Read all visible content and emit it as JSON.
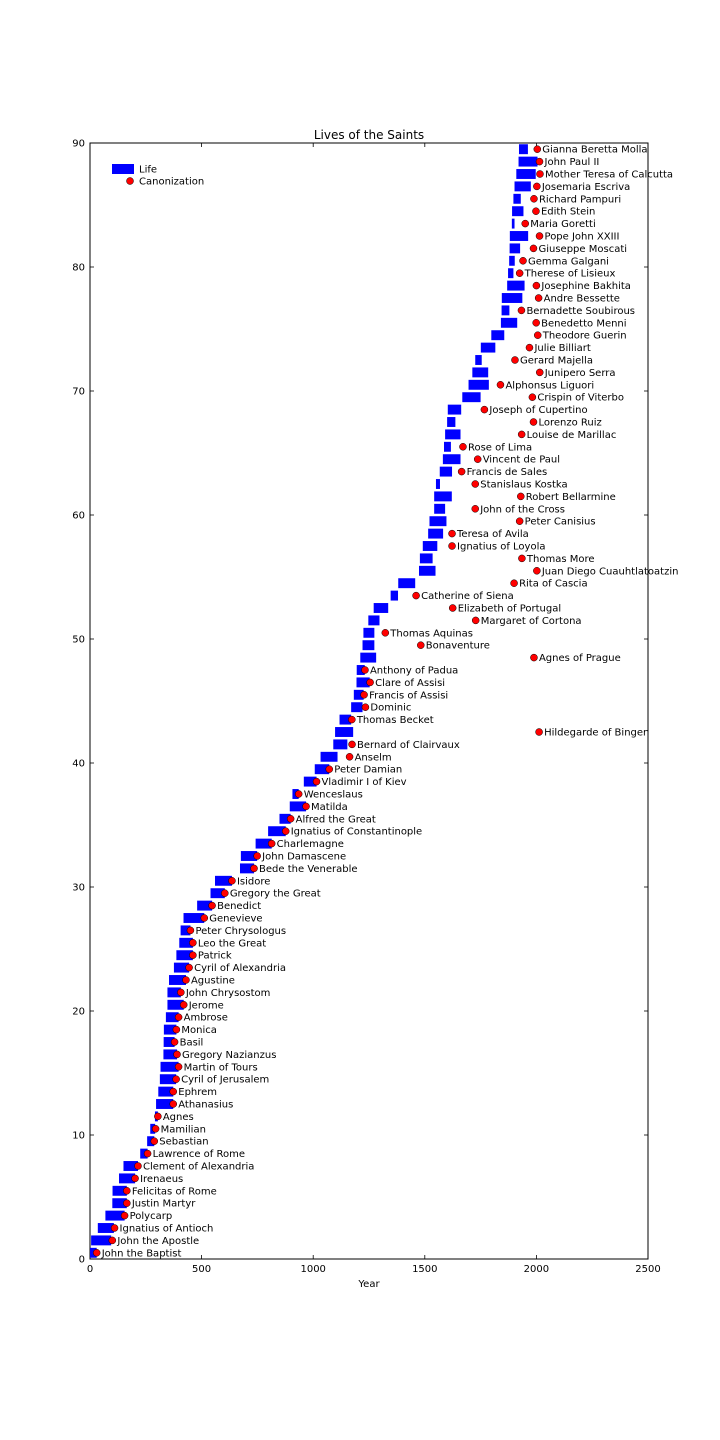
{
  "chart_data": {
    "type": "bar",
    "orientation": "horizontal-floating",
    "title": "Lives of the Saints",
    "xlabel": "Year",
    "ylabel": "",
    "xlim": [
      0,
      2500
    ],
    "ylim": [
      0,
      90
    ],
    "xticks": [
      0,
      500,
      1000,
      1500,
      2000,
      2500
    ],
    "yticks": [
      0,
      10,
      20,
      30,
      40,
      50,
      60,
      70,
      80,
      90
    ],
    "grid": false,
    "legend": {
      "position": "top-left",
      "entries": [
        "Life",
        "Canonization"
      ]
    },
    "colors": {
      "life": "#0000ff",
      "canonization": "#ff0000"
    },
    "series": [
      {
        "name": "Life",
        "kind": "bar"
      },
      {
        "name": "Canonization",
        "kind": "point"
      }
    ],
    "saints": [
      {
        "name": "John the Baptist",
        "start": 0,
        "end": 30,
        "canonization": 30
      },
      {
        "name": "John the Apostle",
        "start": 5,
        "end": 95,
        "canonization": 100
      },
      {
        "name": "Ignatius of Antioch",
        "start": 35,
        "end": 107,
        "canonization": 110
      },
      {
        "name": "Polycarp",
        "start": 69,
        "end": 155,
        "canonization": 155
      },
      {
        "name": "Justin Martyr",
        "start": 100,
        "end": 165,
        "canonization": 165
      },
      {
        "name": "Felicitas of Rome",
        "start": 101,
        "end": 165,
        "canonization": 165
      },
      {
        "name": "Irenaeus",
        "start": 130,
        "end": 202,
        "canonization": 202
      },
      {
        "name": "Clement of Alexandria",
        "start": 150,
        "end": 215,
        "canonization": 215
      },
      {
        "name": "Lawrence of Rome",
        "start": 225,
        "end": 258,
        "canonization": 258
      },
      {
        "name": "Sebastian",
        "start": 256,
        "end": 288,
        "canonization": 288
      },
      {
        "name": "Mamilian",
        "start": 270,
        "end": 292,
        "canonization": 294
      },
      {
        "name": "Agnes",
        "start": 291,
        "end": 304,
        "canonization": 304
      },
      {
        "name": "Athanasius",
        "start": 296,
        "end": 373,
        "canonization": 373
      },
      {
        "name": "Ephrem",
        "start": 306,
        "end": 373,
        "canonization": 373
      },
      {
        "name": "Cyril of Jerusalem",
        "start": 313,
        "end": 386,
        "canonization": 386
      },
      {
        "name": "Martin of Tours",
        "start": 316,
        "end": 397,
        "canonization": 397
      },
      {
        "name": "Gregory Nazianzus",
        "start": 329,
        "end": 390,
        "canonization": 390
      },
      {
        "name": "Basil",
        "start": 330,
        "end": 379,
        "canonization": 379
      },
      {
        "name": "Monica",
        "start": 331,
        "end": 387,
        "canonization": 387
      },
      {
        "name": "Ambrose",
        "start": 340,
        "end": 397,
        "canonization": 397
      },
      {
        "name": "Jerome",
        "start": 347,
        "end": 420,
        "canonization": 420
      },
      {
        "name": "John Chrysostom",
        "start": 347,
        "end": 407,
        "canonization": 407
      },
      {
        "name": "Agustine",
        "start": 354,
        "end": 430,
        "canonization": 430
      },
      {
        "name": "Cyril of Alexandria",
        "start": 376,
        "end": 444,
        "canonization": 444
      },
      {
        "name": "Patrick",
        "start": 387,
        "end": 461,
        "canonization": 461
      },
      {
        "name": "Leo the Great",
        "start": 400,
        "end": 461,
        "canonization": 461
      },
      {
        "name": "Peter Chrysologus",
        "start": 406,
        "end": 450,
        "canonization": 450
      },
      {
        "name": "Genevieve",
        "start": 419,
        "end": 512,
        "canonization": 512
      },
      {
        "name": "Benedict",
        "start": 480,
        "end": 547,
        "canonization": 547
      },
      {
        "name": "Gregory the Great",
        "start": 540,
        "end": 604,
        "canonization": 604
      },
      {
        "name": "Isidore",
        "start": 560,
        "end": 636,
        "canonization": 636
      },
      {
        "name": "Bede the Venerable",
        "start": 672,
        "end": 735,
        "canonization": 735
      },
      {
        "name": "John Damascene",
        "start": 676,
        "end": 749,
        "canonization": 749
      },
      {
        "name": "Charlemagne",
        "start": 742,
        "end": 814,
        "canonization": 814
      },
      {
        "name": "Ignatius of Constantinople",
        "start": 798,
        "end": 877,
        "canonization": 877
      },
      {
        "name": "Alfred the Great",
        "start": 849,
        "end": 899,
        "canonization": 899
      },
      {
        "name": "Matilda",
        "start": 895,
        "end": 968,
        "canonization": 968
      },
      {
        "name": "Wenceslaus",
        "start": 907,
        "end": 935,
        "canonization": 935
      },
      {
        "name": "Vladimir I of Kiev",
        "start": 958,
        "end": 1015,
        "canonization": 1015
      },
      {
        "name": "Peter Damian",
        "start": 1007,
        "end": 1072,
        "canonization": 1072
      },
      {
        "name": "Anselm",
        "start": 1033,
        "end": 1109,
        "canonization": 1163
      },
      {
        "name": "Bernard of Clairvaux",
        "start": 1090,
        "end": 1153,
        "canonization": 1174
      },
      {
        "name": "Hildegarde of Bingen",
        "start": 1098,
        "end": 1179,
        "canonization": 2012
      },
      {
        "name": "Thomas Becket",
        "start": 1118,
        "end": 1170,
        "canonization": 1173
      },
      {
        "name": "Dominic",
        "start": 1170,
        "end": 1221,
        "canonization": 1234
      },
      {
        "name": "Francis of Assisi",
        "start": 1182,
        "end": 1226,
        "canonization": 1228
      },
      {
        "name": "Clare of Assisi",
        "start": 1194,
        "end": 1253,
        "canonization": 1255
      },
      {
        "name": "Anthony of Padua",
        "start": 1195,
        "end": 1231,
        "canonization": 1232
      },
      {
        "name": "Agnes of Prague",
        "start": 1211,
        "end": 1282,
        "canonization": 1989
      },
      {
        "name": "Bonaventure",
        "start": 1221,
        "end": 1274,
        "canonization": 1482
      },
      {
        "name": "Thomas Aquinas",
        "start": 1225,
        "end": 1274,
        "canonization": 1323
      },
      {
        "name": "Margaret of Cortona",
        "start": 1247,
        "end": 1297,
        "canonization": 1728
      },
      {
        "name": "Elizabeth of Portugal",
        "start": 1271,
        "end": 1336,
        "canonization": 1625
      },
      {
        "name": "Catherine of Siena",
        "start": 1347,
        "end": 1380,
        "canonization": 1461
      },
      {
        "name": "Rita of Cascia",
        "start": 1381,
        "end": 1457,
        "canonization": 1900
      },
      {
        "name": "Juan Diego Cuauhtlatoatzin",
        "start": 1474,
        "end": 1548,
        "canonization": 2002
      },
      {
        "name": "Thomas More",
        "start": 1478,
        "end": 1535,
        "canonization": 1935
      },
      {
        "name": "Ignatius of Loyola",
        "start": 1491,
        "end": 1556,
        "canonization": 1622
      },
      {
        "name": "Teresa of Avila",
        "start": 1515,
        "end": 1582,
        "canonization": 1622
      },
      {
        "name": "Peter Canisius",
        "start": 1521,
        "end": 1597,
        "canonization": 1925
      },
      {
        "name": "John of the Cross",
        "start": 1542,
        "end": 1591,
        "canonization": 1726
      },
      {
        "name": "Robert Bellarmine",
        "start": 1542,
        "end": 1621,
        "canonization": 1930
      },
      {
        "name": "Stanislaus Kostka",
        "start": 1550,
        "end": 1568,
        "canonization": 1726
      },
      {
        "name": "Francis de Sales",
        "start": 1567,
        "end": 1622,
        "canonization": 1665
      },
      {
        "name": "Vincent de Paul",
        "start": 1581,
        "end": 1660,
        "canonization": 1737
      },
      {
        "name": "Rose of Lima",
        "start": 1586,
        "end": 1617,
        "canonization": 1671
      },
      {
        "name": "Louise de Marillac",
        "start": 1591,
        "end": 1660,
        "canonization": 1934
      },
      {
        "name": "Lorenzo Ruiz",
        "start": 1600,
        "end": 1637,
        "canonization": 1987
      },
      {
        "name": "Joseph of Cupertino",
        "start": 1603,
        "end": 1663,
        "canonization": 1767
      },
      {
        "name": "Crispin of Viterbo",
        "start": 1668,
        "end": 1750,
        "canonization": 1982
      },
      {
        "name": "Alphonsus Liguori",
        "start": 1696,
        "end": 1787,
        "canonization": 1839
      },
      {
        "name": "Junipero Serra",
        "start": 1713,
        "end": 1784,
        "canonization": 2015
      },
      {
        "name": "Gerard Majella",
        "start": 1726,
        "end": 1755,
        "canonization": 1904
      },
      {
        "name": "Julie Billiart",
        "start": 1751,
        "end": 1816,
        "canonization": 1969
      },
      {
        "name": "Theodore Guerin",
        "start": 1798,
        "end": 1856,
        "canonization": 2006
      },
      {
        "name": "Benedetto Menni",
        "start": 1841,
        "end": 1914,
        "canonization": 1999
      },
      {
        "name": "Bernadette Soubirous",
        "start": 1844,
        "end": 1879,
        "canonization": 1933
      },
      {
        "name": "Andre Bessette",
        "start": 1845,
        "end": 1937,
        "canonization": 2010
      },
      {
        "name": "Josephine Bakhita",
        "start": 1869,
        "end": 1947,
        "canonization": 2000
      },
      {
        "name": "Therese of Lisieux",
        "start": 1873,
        "end": 1897,
        "canonization": 1925
      },
      {
        "name": "Gemma Galgani",
        "start": 1878,
        "end": 1903,
        "canonization": 1940
      },
      {
        "name": "Giuseppe Moscati",
        "start": 1880,
        "end": 1927,
        "canonization": 1987
      },
      {
        "name": "Pope John XXIII",
        "start": 1881,
        "end": 1963,
        "canonization": 2014
      },
      {
        "name": "Maria Goretti",
        "start": 1890,
        "end": 1902,
        "canonization": 1950
      },
      {
        "name": "Edith Stein",
        "start": 1891,
        "end": 1942,
        "canonization": 1998
      },
      {
        "name": "Richard Pampuri",
        "start": 1897,
        "end": 1930,
        "canonization": 1989
      },
      {
        "name": "Josemaria Escriva",
        "start": 1902,
        "end": 1975,
        "canonization": 2002
      },
      {
        "name": "Mother Teresa of Calcutta",
        "start": 1910,
        "end": 1997,
        "canonization": 2016
      },
      {
        "name": "John Paul II",
        "start": 1920,
        "end": 2005,
        "canonization": 2014
      },
      {
        "name": "Gianna Beretta Molla",
        "start": 1922,
        "end": 1962,
        "canonization": 2004
      }
    ]
  }
}
